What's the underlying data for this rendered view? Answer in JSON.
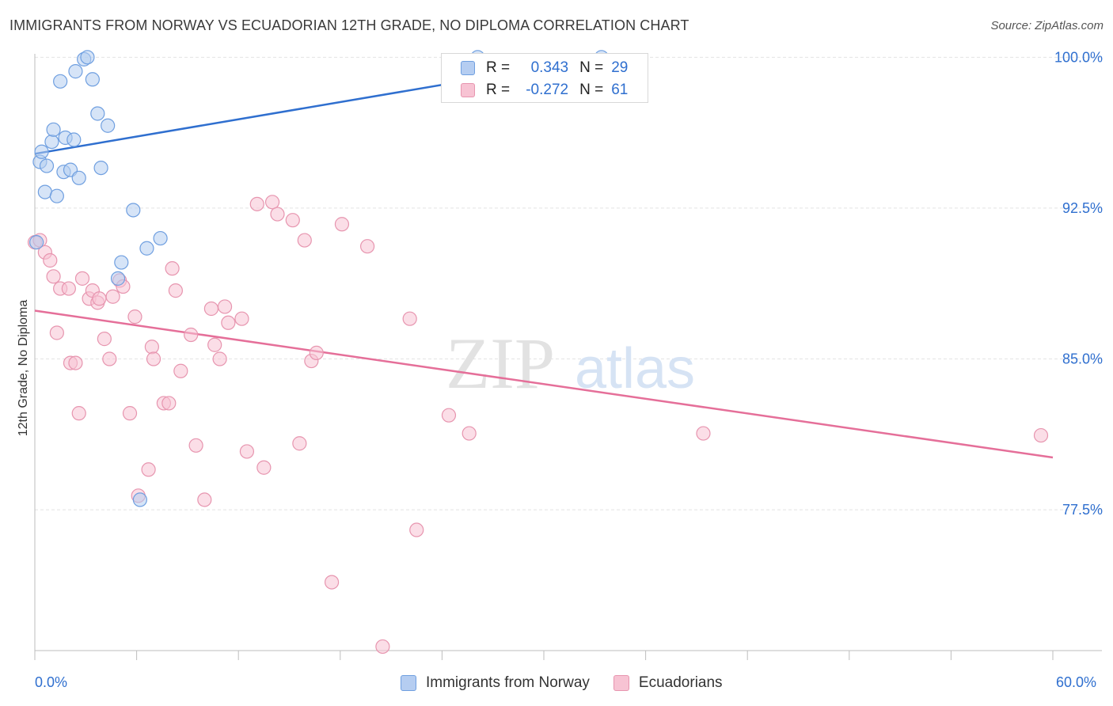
{
  "title": "IMMIGRANTS FROM NORWAY VS ECUADORIAN 12TH GRADE, NO DIPLOMA CORRELATION CHART",
  "source": "Source: ZipAtlas.com",
  "watermark": {
    "zip": "ZIP",
    "atlas": "atlas"
  },
  "legend_box": {
    "rows": [
      {
        "r_label": "R =",
        "r_value": "0.343",
        "n_label": "N =",
        "n_value": "29"
      },
      {
        "r_label": "R =",
        "r_value": "-0.272",
        "n_label": "N =",
        "n_value": "61"
      }
    ]
  },
  "chart_data": {
    "type": "scatter",
    "title": "IMMIGRANTS FROM NORWAY VS ECUADORIAN 12TH GRADE, NO DIPLOMA CORRELATION CHART",
    "xlabel": "",
    "ylabel": "12th Grade, No Diploma",
    "xlim": [
      0,
      60
    ],
    "ylim": [
      70.5,
      100.8
    ],
    "x_tick_labels": {
      "min": "0.0%",
      "max": "60.0%"
    },
    "y_ticks": [
      {
        "value": 100.0,
        "label": "100.0%"
      },
      {
        "value": 92.5,
        "label": "92.5%"
      },
      {
        "value": 85.0,
        "label": "85.0%"
      },
      {
        "value": 77.5,
        "label": "77.5%"
      }
    ],
    "grid": "horizontal-dashed",
    "series": [
      {
        "name": "Immigrants from Norway",
        "color": "#6f9fe0",
        "fill": "#b5cdf1",
        "line_color": "#2f6fcf",
        "r": "0.343",
        "n": "29",
        "trend": {
          "x": [
            0.0,
            33.6
          ],
          "y": [
            95.2,
            100.0
          ]
        },
        "trend_extension": {
          "x": [
            24.4,
            33.6
          ],
          "y": [
            98.7,
            100.0
          ]
        },
        "x": [
          0.1,
          0.3,
          0.4,
          0.6,
          0.7,
          1.0,
          1.1,
          1.3,
          1.5,
          1.7,
          1.8,
          2.1,
          2.3,
          2.4,
          2.6,
          2.9,
          3.1,
          3.4,
          3.7,
          3.9,
          4.3,
          4.9,
          5.1,
          5.8,
          6.2,
          6.6,
          7.4,
          26.1,
          33.4
        ],
        "y": [
          90.8,
          94.8,
          95.3,
          93.3,
          94.6,
          95.8,
          96.4,
          93.1,
          98.8,
          94.3,
          96.0,
          94.4,
          95.9,
          99.3,
          94.0,
          99.9,
          100.0,
          98.9,
          97.2,
          94.5,
          96.6,
          89.0,
          89.8,
          92.4,
          78.0,
          90.5,
          91.0,
          100.0,
          100.0
        ]
      },
      {
        "name": "Ecuadorians",
        "color": "#e795af",
        "fill": "#f7c3d3",
        "line_color": "#e56f99",
        "r": "-0.272",
        "n": "61",
        "trend": {
          "x": [
            0.0,
            60.0
          ],
          "y": [
            87.4,
            80.1
          ]
        },
        "x": [
          0.0,
          0.3,
          0.6,
          0.9,
          1.1,
          1.3,
          1.5,
          2.0,
          2.1,
          2.4,
          2.6,
          2.8,
          3.2,
          3.4,
          3.7,
          3.8,
          4.1,
          4.4,
          4.6,
          5.0,
          5.2,
          5.6,
          5.9,
          6.1,
          6.7,
          6.9,
          7.0,
          7.6,
          7.9,
          8.1,
          8.3,
          8.6,
          9.2,
          9.5,
          10.0,
          10.4,
          10.6,
          10.9,
          11.2,
          11.4,
          12.2,
          12.5,
          13.1,
          13.5,
          14.0,
          14.3,
          15.2,
          15.6,
          15.9,
          16.3,
          16.6,
          17.5,
          18.1,
          19.6,
          20.5,
          22.1,
          22.5,
          24.4,
          25.6,
          39.4,
          59.3
        ],
        "y": [
          90.8,
          90.9,
          90.3,
          89.9,
          89.1,
          86.3,
          88.5,
          88.5,
          84.8,
          84.8,
          82.3,
          89.0,
          88.0,
          88.4,
          87.8,
          88.0,
          86.0,
          85.0,
          88.1,
          88.9,
          88.6,
          82.3,
          87.1,
          78.2,
          79.5,
          85.6,
          85.0,
          82.8,
          82.8,
          89.5,
          88.4,
          84.4,
          86.2,
          80.7,
          78.0,
          87.5,
          85.7,
          85.0,
          87.6,
          86.8,
          87.0,
          80.4,
          92.7,
          79.6,
          92.8,
          92.2,
          91.9,
          80.8,
          90.9,
          84.9,
          85.3,
          73.9,
          91.7,
          90.6,
          70.7,
          87.0,
          76.5,
          82.2,
          81.3,
          81.3,
          81.2
        ]
      }
    ]
  }
}
